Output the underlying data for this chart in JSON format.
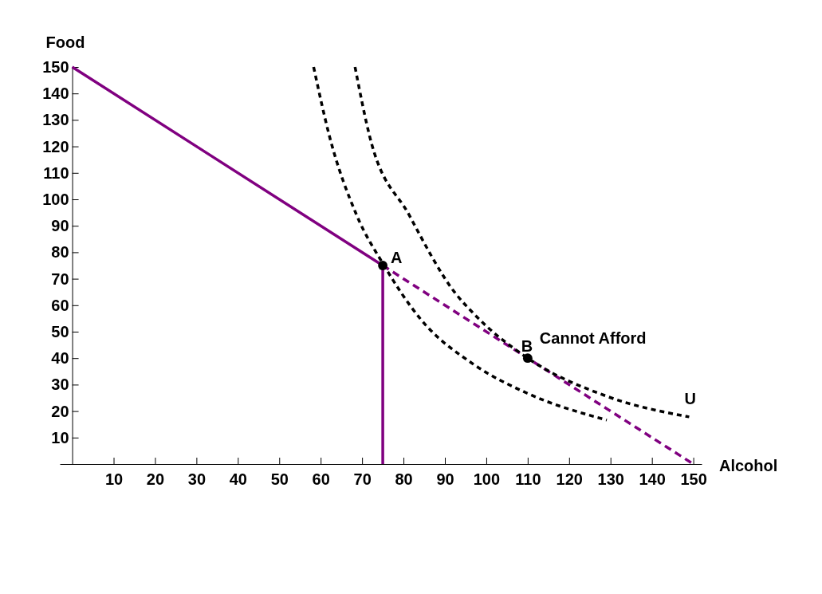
{
  "chart_data": {
    "type": "line",
    "xlabel": "Alcohol",
    "ylabel": "Food",
    "xlim": [
      -3,
      152
    ],
    "ylim": [
      0,
      150
    ],
    "xticks": [
      10,
      20,
      30,
      40,
      50,
      60,
      70,
      80,
      90,
      100,
      110,
      120,
      130,
      140,
      150
    ],
    "yticks": [
      10,
      20,
      30,
      40,
      50,
      60,
      70,
      80,
      90,
      100,
      110,
      120,
      130,
      140,
      150
    ],
    "grid": false,
    "series": [
      {
        "color": "#800080",
        "line_style": "solid",
        "marker": "none",
        "x": [
          0,
          75,
          75
        ],
        "values": [
          150,
          75,
          0
        ]
      },
      {
        "color": "#800080",
        "line_style": "dashed",
        "marker": "none",
        "x": [
          75,
          150
        ],
        "values": [
          75,
          0
        ]
      },
      {
        "color": "#000000",
        "line_style": "dotted",
        "marker": "none",
        "x": [
          58.3,
          62.1,
          68.7,
          75.2,
          84.1,
          96.9,
          109.8,
          129.1
        ],
        "values": [
          150,
          124,
          94,
          75.3,
          54.8,
          37.7,
          26.8,
          16.6
        ]
      },
      {
        "color": "#000000",
        "line_style": "dotted",
        "marker": "none",
        "x": [
          68.3,
          71.8,
          81.4,
          92.4,
          96.9,
          110,
          129.1,
          149
        ],
        "values": [
          150,
          124,
          94,
          64.8,
          56.9,
          40,
          25.6,
          17.8
        ]
      },
      {
        "type": "scatter",
        "color": "#000000",
        "marker": "circle",
        "x": [
          75,
          110
        ],
        "values": [
          75,
          40
        ]
      }
    ],
    "annotations": [
      {
        "text": "A",
        "x": 75,
        "y": 75
      },
      {
        "text": "B",
        "x": 110,
        "y": 40
      },
      {
        "text": "Cannot Afford",
        "x": 110,
        "y": 40
      },
      {
        "text": "U",
        "x": 149,
        "y": 17.8
      }
    ]
  }
}
